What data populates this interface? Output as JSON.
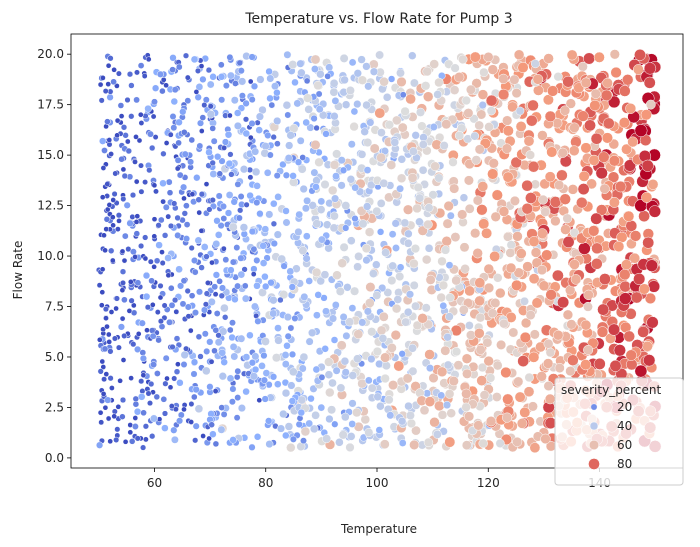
{
  "chart_data": {
    "type": "scatter",
    "title": "Temperature vs. Flow Rate for Pump 3",
    "xlabel": "Temperature",
    "ylabel": "Flow Rate",
    "xlim": [
      45,
      155
    ],
    "ylim": [
      -0.5,
      21
    ],
    "xticks": [
      60,
      80,
      100,
      120,
      140
    ],
    "yticks": [
      0.0,
      2.5,
      5.0,
      7.5,
      10.0,
      12.5,
      15.0,
      17.5,
      20.0
    ],
    "hue": "severity_percent",
    "x_range": [
      50,
      150
    ],
    "y_range": [
      0.5,
      20
    ],
    "n_points": 2800,
    "severity_range": [
      5,
      95
    ],
    "colormap": "coolwarm",
    "legend": {
      "title": "severity_percent",
      "entries": [
        "20",
        "40",
        "60",
        "80"
      ],
      "position": "lower-right"
    }
  }
}
